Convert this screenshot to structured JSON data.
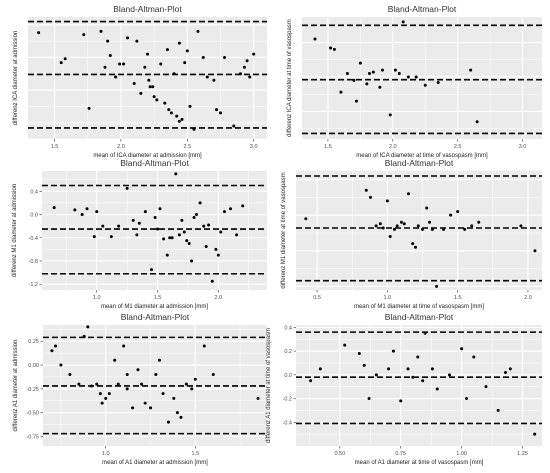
{
  "chart_data": [
    {
      "type": "scatter",
      "title": "Bland-Altman-Plot",
      "xlabel": "mean of ICA diameter at admission [mm]",
      "ylabel": "differenz ICA diameter at admission",
      "xlim": [
        1.3,
        3.1
      ],
      "ylim": [
        -1.25,
        0.62
      ],
      "xticks": [
        {
          "value": 1.5,
          "label": "1.5"
        },
        {
          "value": 2.0,
          "label": "2.0"
        },
        {
          "value": 2.5,
          "label": "2.5"
        },
        {
          "value": 3.0,
          "label": "3.0"
        }
      ],
      "yticks": [],
      "hlines": [
        0.55,
        -0.26,
        -1.08
      ],
      "grid": true,
      "points": {
        "x": [
          1.38,
          1.55,
          1.58,
          1.72,
          1.76,
          1.85,
          1.88,
          1.9,
          1.92,
          1.96,
          1.99,
          2.02,
          2.05,
          2.1,
          2.12,
          2.15,
          2.18,
          2.2,
          2.21,
          2.22,
          2.24,
          2.25,
          2.27,
          2.3,
          2.33,
          2.35,
          2.36,
          2.38,
          2.4,
          2.42,
          2.44,
          2.46,
          2.48,
          2.5,
          2.52,
          2.55,
          2.58,
          2.62,
          2.65,
          2.7,
          2.72,
          2.75,
          2.78,
          2.85,
          2.9,
          2.93,
          2.95,
          2.97,
          3.0,
          2.44
        ],
        "y": [
          0.38,
          -0.08,
          -0.02,
          0.35,
          -0.78,
          0.4,
          -0.15,
          0.25,
          0.03,
          -0.3,
          -0.1,
          -0.1,
          0.3,
          -0.4,
          0.25,
          -0.55,
          -0.15,
          0.05,
          -0.35,
          -0.45,
          -0.45,
          -0.6,
          -0.65,
          -0.1,
          -0.7,
          0.12,
          -0.8,
          -0.85,
          -0.25,
          -0.9,
          -0.98,
          -0.95,
          -0.08,
          0.1,
          -0.75,
          -1.1,
          0.4,
          0.0,
          -0.3,
          -0.35,
          -0.8,
          -0.85,
          0.0,
          -1.05,
          -0.25,
          -0.15,
          -0.05,
          -0.3,
          0.05,
          0.22
        ]
      }
    },
    {
      "type": "scatter",
      "title": "Bland-Altman-Plot",
      "xlabel": "mean of ICA diameter at time of vasospasm [mm]",
      "ylabel": "differenz ICA diameter at time of vasospasm",
      "xlim": [
        1.3,
        3.15
      ],
      "ylim": [
        -0.9,
        0.87
      ],
      "xticks": [
        {
          "value": 1.5,
          "label": "1.5"
        },
        {
          "value": 2.0,
          "label": "2.0"
        },
        {
          "value": 2.5,
          "label": "2.5"
        },
        {
          "value": 3.0,
          "label": "3.0"
        }
      ],
      "yticks": [],
      "hlines": [
        0.75,
        -0.04,
        -0.82
      ],
      "grid": true,
      "points": {
        "x": [
          1.4,
          1.52,
          1.55,
          1.6,
          1.65,
          1.7,
          1.72,
          1.75,
          1.8,
          1.82,
          1.85,
          1.9,
          1.92,
          1.98,
          2.02,
          2.05,
          2.08,
          2.12,
          2.18,
          2.25,
          2.35,
          2.6,
          2.65
        ],
        "y": [
          0.55,
          0.42,
          0.4,
          -0.22,
          0.05,
          -0.05,
          -0.35,
          0.2,
          -0.1,
          0.05,
          0.07,
          -0.15,
          0.1,
          -0.55,
          0.1,
          0.05,
          0.8,
          0.0,
          0.0,
          -0.12,
          -0.08,
          0.1,
          -0.65
        ]
      }
    },
    {
      "type": "scatter",
      "title": "Bland-Altman-Plot",
      "xlabel": "mean of M1 diameter at admission [mm]",
      "ylabel": "differenz M1 diameter at admission",
      "xlim": [
        0.55,
        2.4
      ],
      "ylim": [
        -1.3,
        0.75
      ],
      "xticks": [
        {
          "value": 1.0,
          "label": "1.0"
        },
        {
          "value": 1.5,
          "label": "1.5"
        },
        {
          "value": 2.0,
          "label": "2.0"
        }
      ],
      "yticks": [
        {
          "value": 0.4,
          "label": "0.4"
        },
        {
          "value": 0.0,
          "label": "0.0"
        },
        {
          "value": -0.4,
          "label": "-0.4"
        },
        {
          "value": -0.8,
          "label": "-0.8"
        },
        {
          "value": -1.2,
          "label": "-1.2"
        }
      ],
      "hlines": [
        0.5,
        -0.25,
        -1.02
      ],
      "grid": true,
      "points": {
        "x": [
          0.65,
          0.82,
          0.88,
          0.92,
          0.98,
          1.0,
          1.05,
          1.12,
          1.18,
          1.25,
          1.3,
          1.35,
          1.4,
          1.45,
          1.5,
          1.52,
          1.55,
          1.58,
          1.6,
          1.62,
          1.65,
          1.68,
          1.7,
          1.72,
          1.74,
          1.76,
          1.78,
          1.8,
          1.82,
          1.85,
          1.88,
          1.9,
          1.92,
          1.95,
          1.98,
          2.0,
          2.02,
          2.05,
          2.1,
          2.15,
          2.2,
          1.48,
          1.33
        ],
        "y": [
          0.12,
          0.08,
          0.0,
          0.1,
          -0.38,
          0.05,
          -0.2,
          -0.38,
          -0.2,
          0.45,
          -0.1,
          -0.15,
          0.05,
          -0.95,
          -0.25,
          0.1,
          -0.42,
          -0.7,
          -0.4,
          -0.4,
          0.7,
          -0.35,
          -0.1,
          -0.3,
          -0.45,
          -0.5,
          -0.8,
          -0.05,
          0.0,
          0.2,
          -0.2,
          -0.55,
          -0.18,
          -1.15,
          -0.6,
          -0.7,
          -0.3,
          0.05,
          0.1,
          -0.35,
          0.15,
          -0.05,
          -0.35
        ]
      }
    },
    {
      "type": "scatter",
      "title": "Bland-Altman-Plot",
      "xlabel": "mean of M1 diameter at time of vasospasm [mm]",
      "ylabel": "differenz M1 diameter at time of vasospasm",
      "xlim": [
        0.35,
        2.1
      ],
      "ylim": [
        -1.05,
        0.62
      ],
      "xticks": [
        {
          "value": 0.5,
          "label": "0.5"
        },
        {
          "value": 1.0,
          "label": "1.0"
        },
        {
          "value": 1.5,
          "label": "1.5"
        },
        {
          "value": 2.0,
          "label": "2.0"
        }
      ],
      "yticks": [],
      "hlines": [
        0.55,
        -0.18,
        -0.92
      ],
      "grid": true,
      "points": {
        "x": [
          0.42,
          0.85,
          0.88,
          0.92,
          0.95,
          0.97,
          1.0,
          1.02,
          1.05,
          1.07,
          1.1,
          1.12,
          1.15,
          1.18,
          1.2,
          1.22,
          1.25,
          1.28,
          1.3,
          1.32,
          1.35,
          1.4,
          1.45,
          1.5,
          1.55,
          1.6,
          1.65,
          1.95,
          2.05
        ],
        "y": [
          -0.05,
          0.35,
          0.25,
          -0.15,
          -0.12,
          -0.18,
          0.2,
          -0.3,
          -0.2,
          -0.15,
          -0.1,
          -0.12,
          0.3,
          -0.4,
          -0.45,
          -0.15,
          -0.2,
          0.1,
          -0.1,
          -0.2,
          -1.0,
          -0.2,
          0.0,
          0.05,
          -0.2,
          -0.15,
          -0.1,
          -0.15,
          -0.5
        ]
      }
    },
    {
      "type": "scatter",
      "title": "Bland-Altman-Plot",
      "xlabel": "mean of A1 diameter at admission [mm]",
      "ylabel": "differenz A1 diameter at admission",
      "xlim": [
        0.65,
        1.9
      ],
      "ylim": [
        -0.85,
        0.42
      ],
      "xticks": [
        {
          "value": 1.0,
          "label": "1.0"
        },
        {
          "value": 1.5,
          "label": "1.5"
        }
      ],
      "yticks": [
        {
          "value": 0.25,
          "label": "0.25"
        },
        {
          "value": 0.0,
          "label": "0.00"
        },
        {
          "value": -0.25,
          "label": "-0.25"
        },
        {
          "value": -0.5,
          "label": "-0.50"
        },
        {
          "value": -0.75,
          "label": "-0.75"
        }
      ],
      "hlines": [
        0.29,
        -0.22,
        -0.72
      ],
      "grid": true,
      "points": {
        "x": [
          0.7,
          0.72,
          0.75,
          0.8,
          0.85,
          0.88,
          0.9,
          0.92,
          0.95,
          0.97,
          0.98,
          1.0,
          1.02,
          1.05,
          1.07,
          1.1,
          1.12,
          1.15,
          1.18,
          1.2,
          1.22,
          1.25,
          1.28,
          1.3,
          1.32,
          1.35,
          1.38,
          1.4,
          1.42,
          1.45,
          1.48,
          1.5,
          1.55,
          1.6,
          1.85,
          1.12
        ],
        "y": [
          0.15,
          0.2,
          0.0,
          -0.1,
          -0.2,
          0.3,
          0.4,
          -0.22,
          -0.2,
          -0.3,
          -0.4,
          -0.35,
          -0.3,
          0.05,
          -0.2,
          0.2,
          -0.1,
          -0.45,
          -0.05,
          -0.2,
          -0.4,
          -0.45,
          -0.1,
          0.05,
          -0.3,
          -0.6,
          -0.35,
          -0.5,
          -0.55,
          -0.2,
          -0.25,
          -0.15,
          0.2,
          -0.1,
          -0.35,
          -0.25
        ]
      }
    },
    {
      "type": "scatter",
      "title": "Bland-Altman-Plot",
      "xlabel": "mean of A1 diameter at time of vasospasm [mm]",
      "ylabel": "differenz A1 diameter at time of vasospasm",
      "xlim": [
        0.32,
        1.33
      ],
      "ylim": [
        -0.6,
        0.42
      ],
      "xticks": [
        {
          "value": 0.5,
          "label": "0.50"
        },
        {
          "value": 0.75,
          "label": "0.75"
        },
        {
          "value": 1.0,
          "label": "1.00"
        },
        {
          "value": 1.25,
          "label": "1.25"
        }
      ],
      "yticks": [
        {
          "value": 0.4,
          "label": "0.4"
        },
        {
          "value": 0.2,
          "label": "0.2"
        },
        {
          "value": 0.0,
          "label": "0.0"
        },
        {
          "value": -0.2,
          "label": "-0.2"
        },
        {
          "value": -0.4,
          "label": "-0.4"
        }
      ],
      "hlines": [
        0.36,
        -0.02,
        -0.41
      ],
      "grid": true,
      "points": {
        "x": [
          0.38,
          0.42,
          0.52,
          0.58,
          0.6,
          0.62,
          0.65,
          0.7,
          0.72,
          0.75,
          0.78,
          0.8,
          0.82,
          0.84,
          0.85,
          0.88,
          0.9,
          0.95,
          1.0,
          1.02,
          1.05,
          1.1,
          1.15,
          1.18,
          1.2,
          1.3
        ],
        "y": [
          -0.05,
          0.05,
          0.25,
          0.18,
          0.08,
          -0.2,
          0.0,
          0.05,
          0.2,
          -0.22,
          0.05,
          -0.02,
          0.15,
          -0.05,
          0.35,
          0.05,
          -0.12,
          0.0,
          0.22,
          -0.2,
          0.15,
          -0.1,
          -0.3,
          0.02,
          0.05,
          -0.5
        ]
      }
    }
  ]
}
